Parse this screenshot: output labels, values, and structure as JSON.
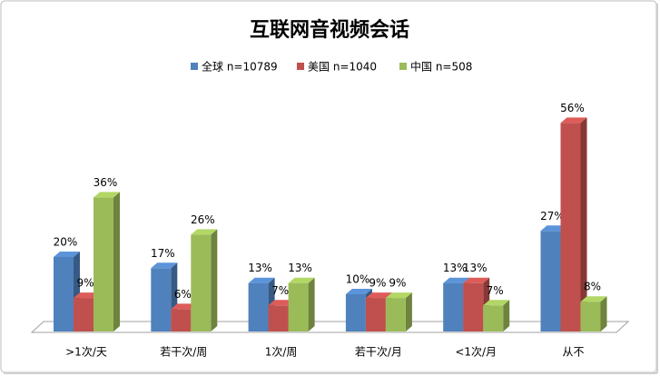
{
  "chart_data": {
    "type": "bar3d",
    "title": "互联网音视频会话",
    "categories": [
      ">1次/天",
      "若干次/周",
      "1次/周",
      "若干次/月",
      "<1次/月",
      "从不"
    ],
    "series": [
      {
        "name": "全球 n=10789",
        "color": "#4f81bd",
        "values": [
          20,
          17,
          13,
          10,
          13,
          27
        ],
        "value_labels": [
          "20%",
          "17%",
          "13%",
          "10%",
          "13%",
          "27%"
        ]
      },
      {
        "name": "美国 n=1040",
        "color": "#c0504d",
        "values": [
          9,
          6,
          7,
          9,
          13,
          56
        ],
        "value_labels": [
          "9%",
          "6%",
          "7%",
          "9%",
          "13%",
          "56%"
        ]
      },
      {
        "name": "中国 n=508",
        "color": "#9bbb59",
        "values": [
          36,
          26,
          13,
          9,
          7,
          8
        ],
        "value_labels": [
          "36%",
          "26%",
          "13%",
          "9%",
          "7%",
          "8%"
        ]
      }
    ],
    "legend": "top"
  }
}
